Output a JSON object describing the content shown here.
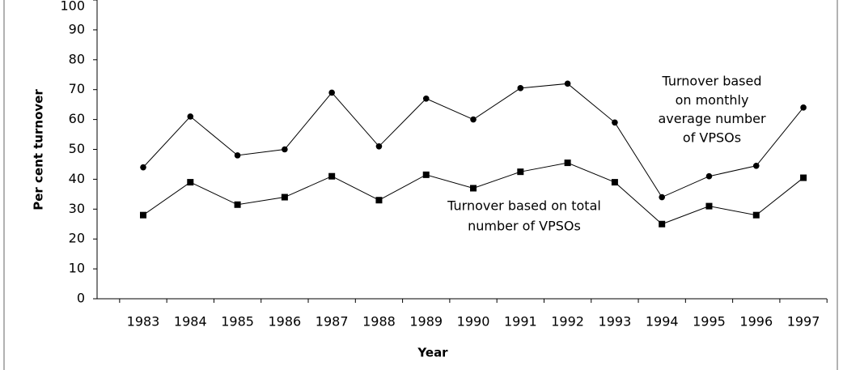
{
  "chart_data": {
    "type": "line",
    "xlabel": "Year",
    "ylabel": "Per cent turnover",
    "categories": [
      "1983",
      "1984",
      "1985",
      "1986",
      "1987",
      "1988",
      "1989",
      "1990",
      "1991",
      "1992",
      "1993",
      "1994",
      "1995",
      "1996",
      "1997"
    ],
    "series": [
      {
        "color": "#000000",
        "marker": "circle",
        "values": [
          44,
          61,
          48,
          50,
          69,
          51,
          67,
          60,
          70.5,
          72,
          59,
          34,
          41,
          44.5,
          64
        ]
      },
      {
        "color": "#000000",
        "marker": "square",
        "values": [
          28,
          39,
          31.5,
          34,
          41,
          33,
          41.5,
          37,
          42.5,
          45.5,
          39,
          25,
          31,
          28,
          40.5
        ]
      }
    ],
    "annotations": [
      {
        "lines": [
          "Turnover based",
          "on monthly",
          "average number",
          "of VPSOs"
        ]
      },
      {
        "lines": [
          "Turnover based on total",
          "number of VPSOs"
        ]
      }
    ],
    "ylim": [
      0,
      100
    ],
    "yticks": [
      0,
      10,
      20,
      30,
      40,
      50,
      60,
      70,
      80,
      90,
      100
    ],
    "grid": false
  }
}
